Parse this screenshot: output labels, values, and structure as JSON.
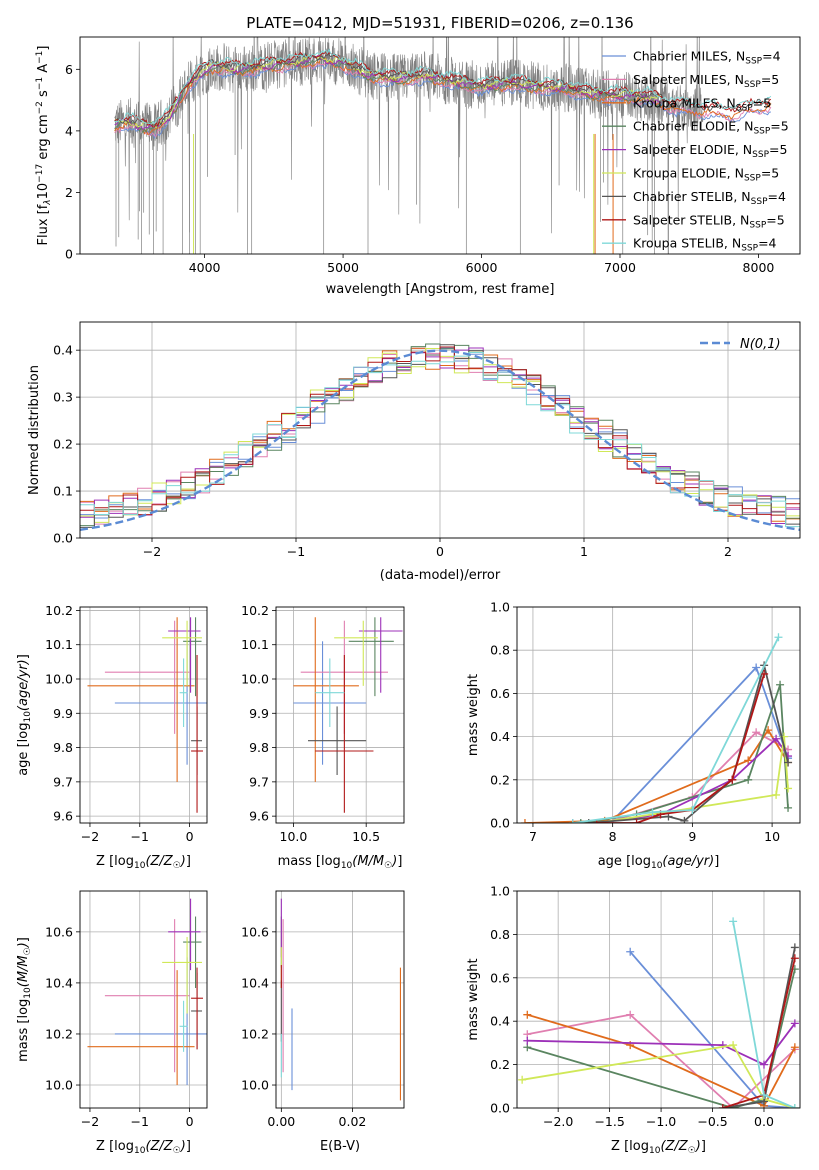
{
  "figure": {
    "title": "PLATE=0412, MJD=51931, FIBERID=0206, z=0.136"
  },
  "colors": {
    "chabrier_miles": "#6a8fd8",
    "salpeter_miles": "#e07fb0",
    "kroupa_miles": "#e06b1c",
    "chabrier_elodie": "#5a8560",
    "salpeter_elodie": "#9c30b8",
    "kroupa_elodie": "#d0e858",
    "chabrier_stelib": "#555555",
    "salpeter_stelib": "#b01818",
    "kroupa_stelib": "#7fd8d8",
    "data": "#808080",
    "normal": "#5b8bd4"
  },
  "models": [
    {
      "name": "Chabrier MILES, N$_{SSP}$=4",
      "prefix": "Chabrier MILES, N",
      "sub": "SSP",
      "suffix": "=4",
      "color": "#6a8fd8"
    },
    {
      "name": "Salpeter MILES, N$_{SSP}$=5",
      "prefix": "Salpeter MILES, N",
      "sub": "SSP",
      "suffix": "=5",
      "color": "#e07fb0"
    },
    {
      "name": "Kroupa MILES, N$_{SSP}$=5",
      "prefix": "Kroupa MILES, N",
      "sub": "SSP",
      "suffix": "=5",
      "color": "#e06b1c"
    },
    {
      "name": "Chabrier ELODIE, N$_{SSP}$=5",
      "prefix": "Chabrier ELODIE, N",
      "sub": "SSP",
      "suffix": "=5",
      "color": "#5a8560"
    },
    {
      "name": "Salpeter ELODIE, N$_{SSP}$=5",
      "prefix": "Salpeter ELODIE, N",
      "sub": "SSP",
      "suffix": "=5",
      "color": "#9c30b8"
    },
    {
      "name": "Kroupa ELODIE, N$_{SSP}$=5",
      "prefix": "Kroupa ELODIE, N",
      "sub": "SSP",
      "suffix": "=5",
      "color": "#d0e858"
    },
    {
      "name": "Chabrier STELIB, N$_{SSP}$=4",
      "prefix": "Chabrier STELIB, N",
      "sub": "SSP",
      "suffix": "=4",
      "color": "#555555"
    },
    {
      "name": "Salpeter STELIB, N$_{SSP}$=5",
      "prefix": "Salpeter STELIB, N",
      "sub": "SSP",
      "suffix": "=5",
      "color": "#b01818"
    },
    {
      "name": "Kroupa STELIB, N$_{SSP}$=4",
      "prefix": "Kroupa STELIB, N",
      "sub": "SSP",
      "suffix": "=4",
      "color": "#7fd8d8"
    }
  ],
  "chart_data": [
    {
      "id": "spectrum",
      "type": "line",
      "xlabel": "wavelength [Angstrom, rest frame]",
      "ylabel": "Flux [f_λ 10^-17 erg cm^-2 s^-1 A^-1]",
      "xlim": [
        3100,
        8300
      ],
      "ylim": [
        0,
        7.05
      ],
      "xticks": [
        4000,
        5000,
        6000,
        7000,
        8000
      ],
      "yticks": [
        0,
        2,
        4,
        6
      ],
      "grid": false,
      "legend": "upper right",
      "continuum": {
        "x": [
          3350,
          3450,
          3550,
          3650,
          3750,
          3850,
          3950,
          4050,
          4150,
          4250,
          4350,
          4500,
          4700,
          4850,
          5000,
          5200,
          5400,
          5600,
          5800,
          6000,
          6200,
          6400,
          6600,
          6800,
          7000,
          7200,
          7400,
          7600,
          7800,
          8000,
          8100
        ],
        "y": [
          4.2,
          4.3,
          4.15,
          4.1,
          4.5,
          5.3,
          5.8,
          6.1,
          6.05,
          6.0,
          6.05,
          6.15,
          6.25,
          6.35,
          6.2,
          5.8,
          5.7,
          5.8,
          5.6,
          5.45,
          5.55,
          5.45,
          5.4,
          5.2,
          5.15,
          5.1,
          4.8,
          4.7,
          4.6,
          4.8,
          4.9
        ]
      },
      "data_range": [
        3350,
        7600
      ],
      "model_range": [
        3350,
        8100
      ]
    },
    {
      "id": "residuals",
      "type": "histogram",
      "xlabel": "(data-model)/error",
      "ylabel": "Normed distribution",
      "xlim": [
        -2.5,
        2.5
      ],
      "ylim": [
        0,
        0.46
      ],
      "xticks": [
        -2,
        -1,
        0,
        1,
        2
      ],
      "yticks": [
        0,
        0.1,
        0.2,
        0.3,
        0.4
      ],
      "grid": true,
      "legend": "upper right",
      "normal_label": "N(0,1)",
      "bin_width": 0.1
    },
    {
      "id": "age_vs_Z",
      "type": "errorbar",
      "xlabel": "Z [log10(Z/Z☉)]",
      "ylabel": "age  [log10(age/yr)]",
      "xlim": [
        -2.2,
        0.35
      ],
      "ylim": [
        9.58,
        10.21
      ],
      "xticks": [
        -2,
        -1,
        0
      ],
      "yticks": [
        9.6,
        9.7,
        9.8,
        9.9,
        10.0,
        10.1,
        10.2
      ],
      "grid": true,
      "points": [
        {
          "x": -0.05,
          "y": 9.93,
          "xerr": [
            1.45,
            0.55
          ],
          "yerr": [
            0.18,
            0.18
          ],
          "color": "#6a8fd8"
        },
        {
          "x": -0.3,
          "y": 10.02,
          "xerr": [
            1.4,
            0.3
          ],
          "yerr": [
            0.18,
            0.15
          ],
          "color": "#e07fb0"
        },
        {
          "x": -0.25,
          "y": 9.98,
          "xerr": [
            1.8,
            0.35
          ],
          "yerr": [
            0.28,
            0.2
          ],
          "color": "#e06b1c"
        },
        {
          "x": 0.12,
          "y": 10.11,
          "xerr": [
            0.25,
            0.12
          ],
          "yerr": [
            0.16,
            0.07
          ],
          "color": "#5a8560"
        },
        {
          "x": 0.02,
          "y": 10.14,
          "xerr": [
            0.45,
            0.2
          ],
          "yerr": [
            0.18,
            0.04
          ],
          "color": "#9c30b8"
        },
        {
          "x": -0.05,
          "y": 10.12,
          "xerr": [
            0.5,
            0.3
          ],
          "yerr": [
            0.14,
            0.05
          ],
          "color": "#d0e858"
        },
        {
          "x": 0.15,
          "y": 9.82,
          "xerr": [
            0.12,
            0.1
          ],
          "yerr": [
            0.1,
            0.1
          ],
          "color": "#555555"
        },
        {
          "x": 0.15,
          "y": 9.79,
          "xerr": [
            0.12,
            0.12
          ],
          "yerr": [
            0.18,
            0.28
          ],
          "color": "#b01818"
        },
        {
          "x": -0.12,
          "y": 9.96,
          "xerr": [
            0.08,
            0.08
          ],
          "yerr": [
            0.1,
            0.1
          ],
          "color": "#7fd8d8"
        }
      ]
    },
    {
      "id": "age_vs_mass",
      "type": "errorbar",
      "xlabel": "mass [log10(M/M☉)]",
      "ylabel": "",
      "xlim": [
        9.88,
        10.76
      ],
      "ylim": [
        9.58,
        10.21
      ],
      "xticks": [
        10.0,
        10.5
      ],
      "yticks": [
        9.6,
        9.7,
        9.8,
        9.9,
        10.0,
        10.1,
        10.2
      ],
      "grid": true,
      "points": [
        {
          "x": 10.2,
          "y": 9.93,
          "xerr": [
            0.2,
            0.3
          ],
          "yerr": [
            0.18,
            0.18
          ],
          "color": "#6a8fd8"
        },
        {
          "x": 10.35,
          "y": 10.02,
          "xerr": [
            0.3,
            0.3
          ],
          "yerr": [
            0.18,
            0.15
          ],
          "color": "#e07fb0"
        },
        {
          "x": 10.15,
          "y": 9.98,
          "xerr": [
            0.15,
            0.3
          ],
          "yerr": [
            0.28,
            0.2
          ],
          "color": "#e06b1c"
        },
        {
          "x": 10.56,
          "y": 10.11,
          "xerr": [
            0.18,
            0.13
          ],
          "yerr": [
            0.16,
            0.07
          ],
          "color": "#5a8560"
        },
        {
          "x": 10.6,
          "y": 10.14,
          "xerr": [
            0.15,
            0.15
          ],
          "yerr": [
            0.18,
            0.04
          ],
          "color": "#9c30b8"
        },
        {
          "x": 10.48,
          "y": 10.12,
          "xerr": [
            0.2,
            0.1
          ],
          "yerr": [
            0.14,
            0.05
          ],
          "color": "#d0e858"
        },
        {
          "x": 10.3,
          "y": 9.82,
          "xerr": [
            0.2,
            0.2
          ],
          "yerr": [
            0.1,
            0.1
          ],
          "color": "#555555"
        },
        {
          "x": 10.35,
          "y": 9.79,
          "xerr": [
            0.2,
            0.2
          ],
          "yerr": [
            0.18,
            0.28
          ],
          "color": "#b01818"
        },
        {
          "x": 10.25,
          "y": 9.96,
          "xerr": [
            0.1,
            0.1
          ],
          "yerr": [
            0.1,
            0.1
          ],
          "color": "#7fd8d8"
        }
      ]
    },
    {
      "id": "weight_vs_age",
      "type": "line",
      "xlabel": "age  [log10(age/yr)]",
      "ylabel": "mass weight",
      "xlim": [
        6.8,
        10.35
      ],
      "ylim": [
        0,
        1.0
      ],
      "xticks": [
        7,
        8,
        9,
        10
      ],
      "yticks": [
        0,
        0.2,
        0.4,
        0.6,
        0.8,
        1.0
      ],
      "grid": true,
      "series": [
        {
          "color": "#6a8fd8",
          "x": [
            7.5,
            8.0,
            9.8,
            10.2
          ],
          "y": [
            0.0,
            0.01,
            0.72,
            0.3
          ]
        },
        {
          "color": "#e07fb0",
          "x": [
            7.5,
            8.0,
            9.0,
            9.8,
            10.2
          ],
          "y": [
            0.0,
            0.01,
            0.12,
            0.42,
            0.34
          ]
        },
        {
          "color": "#e06b1c",
          "x": [
            6.9,
            7.9,
            9.7,
            9.95,
            10.2
          ],
          "y": [
            0.0,
            0.01,
            0.29,
            0.43,
            0.28
          ]
        },
        {
          "color": "#5a8560",
          "x": [
            7.6,
            8.3,
            9.7,
            10.1,
            10.2
          ],
          "y": [
            0.0,
            0.04,
            0.2,
            0.64,
            0.07
          ]
        },
        {
          "color": "#9c30b8",
          "x": [
            7.8,
            8.6,
            9.5,
            10.05,
            10.2
          ],
          "y": [
            0.0,
            0.04,
            0.2,
            0.39,
            0.31
          ]
        },
        {
          "color": "#d0e858",
          "x": [
            7.8,
            8.5,
            10.05,
            10.15,
            10.2
          ],
          "y": [
            0.0,
            0.04,
            0.13,
            0.4,
            0.16
          ]
        },
        {
          "color": "#555555",
          "x": [
            7.7,
            8.7,
            8.9,
            9.5,
            9.9,
            10.2
          ],
          "y": [
            0.0,
            0.03,
            0.01,
            0.2,
            0.73,
            0.28
          ]
        },
        {
          "color": "#b01818",
          "x": [
            7.8,
            8.3,
            8.6,
            9.0,
            9.5,
            9.9
          ],
          "y": [
            0.0,
            0.0,
            0.04,
            0.06,
            0.2,
            0.69
          ]
        },
        {
          "color": "#7fd8d8",
          "x": [
            7.5,
            8.5,
            9.0,
            10.08
          ],
          "y": [
            0.0,
            0.05,
            0.06,
            0.86
          ]
        }
      ]
    },
    {
      "id": "mass_vs_Z",
      "type": "errorbar",
      "xlabel": "Z [log10(Z/Z☉)]",
      "ylabel": "mass [log10(M/M☉)]",
      "xlim": [
        -2.2,
        0.35
      ],
      "ylim": [
        9.91,
        10.76
      ],
      "xticks": [
        -2,
        -1,
        0
      ],
      "yticks": [
        10.0,
        10.2,
        10.4,
        10.6
      ],
      "grid": true,
      "points": [
        {
          "x": -0.05,
          "y": 10.2,
          "xerr": [
            1.45,
            0.55
          ],
          "yerr": [
            0.2,
            0.3
          ],
          "color": "#6a8fd8"
        },
        {
          "x": -0.3,
          "y": 10.35,
          "xerr": [
            1.4,
            0.3
          ],
          "yerr": [
            0.3,
            0.3
          ],
          "color": "#e07fb0"
        },
        {
          "x": -0.25,
          "y": 10.15,
          "xerr": [
            1.8,
            0.35
          ],
          "yerr": [
            0.15,
            0.3
          ],
          "color": "#e06b1c"
        },
        {
          "x": 0.12,
          "y": 10.56,
          "xerr": [
            0.25,
            0.12
          ],
          "yerr": [
            0.18,
            0.1
          ],
          "color": "#5a8560"
        },
        {
          "x": 0.02,
          "y": 10.6,
          "xerr": [
            0.45,
            0.2
          ],
          "yerr": [
            0.15,
            0.13
          ],
          "color": "#9c30b8"
        },
        {
          "x": -0.05,
          "y": 10.48,
          "xerr": [
            0.5,
            0.3
          ],
          "yerr": [
            0.2,
            0.1
          ],
          "color": "#d0e858"
        },
        {
          "x": 0.15,
          "y": 10.29,
          "xerr": [
            0.12,
            0.1
          ],
          "yerr": [
            0.15,
            0.15
          ],
          "color": "#555555"
        },
        {
          "x": 0.15,
          "y": 10.34,
          "xerr": [
            0.12,
            0.12
          ],
          "yerr": [
            0.2,
            0.12
          ],
          "color": "#b01818"
        },
        {
          "x": -0.12,
          "y": 10.23,
          "xerr": [
            0.08,
            0.08
          ],
          "yerr": [
            0.1,
            0.1
          ],
          "color": "#7fd8d8"
        }
      ]
    },
    {
      "id": "mass_vs_ebv",
      "type": "errorbar",
      "xlabel": "E(B-V)",
      "ylabel": "",
      "xlim": [
        -0.0015,
        0.0345
      ],
      "ylim": [
        9.91,
        10.76
      ],
      "xticks": [
        0.0,
        0.02
      ],
      "xticklabels": [
        "0.00",
        "0.02"
      ],
      "yticks": [
        10.0,
        10.2,
        10.4,
        10.6
      ],
      "grid": true,
      "points": [
        {
          "x": 0.003,
          "y": 10.2,
          "xerr": [
            0,
            0
          ],
          "yerr": [
            0.22,
            0.1
          ],
          "color": "#6a8fd8"
        },
        {
          "x": 0.0005,
          "y": 10.35,
          "xerr": [
            0,
            0
          ],
          "yerr": [
            0.3,
            0.3
          ],
          "color": "#e07fb0"
        },
        {
          "x": 0.0335,
          "y": 10.2,
          "xerr": [
            0,
            0
          ],
          "yerr": [
            0.26,
            0.26
          ],
          "color": "#e06b1c"
        },
        {
          "x": 0.0,
          "y": 10.56,
          "xerr": [
            0,
            0
          ],
          "yerr": [
            0.1,
            0.1
          ],
          "color": "#5a8560"
        },
        {
          "x": 0.0,
          "y": 10.6,
          "xerr": [
            0,
            0
          ],
          "yerr": [
            0.1,
            0.13
          ],
          "color": "#9c30b8"
        },
        {
          "x": 0.0,
          "y": 10.48,
          "xerr": [
            0,
            0
          ],
          "yerr": [
            0.1,
            0.06
          ],
          "color": "#d0e858"
        },
        {
          "x": 0.0,
          "y": 10.29,
          "xerr": [
            0,
            0
          ],
          "yerr": [
            0.12,
            0.12
          ],
          "color": "#555555"
        },
        {
          "x": 0.0,
          "y": 10.42,
          "xerr": [
            0,
            0
          ],
          "yerr": [
            0.04,
            0.05
          ],
          "color": "#b01818"
        },
        {
          "x": 0.0,
          "y": 10.1,
          "xerr": [
            0,
            0
          ],
          "yerr": [
            0.07,
            0.1
          ],
          "color": "#7fd8d8"
        }
      ]
    },
    {
      "id": "weight_vs_Z",
      "type": "line",
      "xlabel": "Z [log10(Z/Z☉)]",
      "ylabel": "mass weight",
      "xlim": [
        -2.4,
        0.35
      ],
      "ylim": [
        0,
        1.0
      ],
      "xticks": [
        -2.0,
        -1.5,
        -1.0,
        -0.5,
        0.0
      ],
      "xticklabels": [
        "−2.0",
        "−1.5",
        "−1.0",
        "−0.5",
        "0.0"
      ],
      "yticks": [
        0,
        0.2,
        0.4,
        0.6,
        0.8,
        1.0
      ],
      "grid": true,
      "series": [
        {
          "color": "#6a8fd8",
          "x": [
            -1.3,
            0.0,
            0.3
          ],
          "y": [
            0.72,
            0.01,
            0.0
          ]
        },
        {
          "color": "#e07fb0",
          "x": [
            -2.3,
            -1.3,
            -0.3,
            0.3
          ],
          "y": [
            0.34,
            0.43,
            0.0,
            0.27
          ]
        },
        {
          "color": "#e06b1c",
          "x": [
            -2.3,
            -1.3,
            0.0,
            0.3
          ],
          "y": [
            0.43,
            0.29,
            0.01,
            0.28
          ]
        },
        {
          "color": "#5a8560",
          "x": [
            -2.3,
            -0.3,
            0.0,
            0.3
          ],
          "y": [
            0.28,
            0.0,
            0.04,
            0.64
          ]
        },
        {
          "color": "#9c30b8",
          "x": [
            -2.3,
            -0.4,
            0.0,
            0.3
          ],
          "y": [
            0.31,
            0.29,
            0.2,
            0.39
          ]
        },
        {
          "color": "#d0e858",
          "x": [
            -2.35,
            -0.3,
            0.0,
            0.3
          ],
          "y": [
            0.13,
            0.29,
            0.04,
            0.0
          ]
        },
        {
          "color": "#555555",
          "x": [
            -0.4,
            0.0,
            0.3
          ],
          "y": [
            0.0,
            0.03,
            0.74
          ]
        },
        {
          "color": "#b01818",
          "x": [
            -0.4,
            0.0,
            0.3
          ],
          "y": [
            0.0,
            0.06,
            0.69
          ]
        },
        {
          "color": "#7fd8d8",
          "x": [
            -0.3,
            0.0,
            0.3
          ],
          "y": [
            0.86,
            0.06,
            0.0
          ]
        }
      ]
    }
  ]
}
